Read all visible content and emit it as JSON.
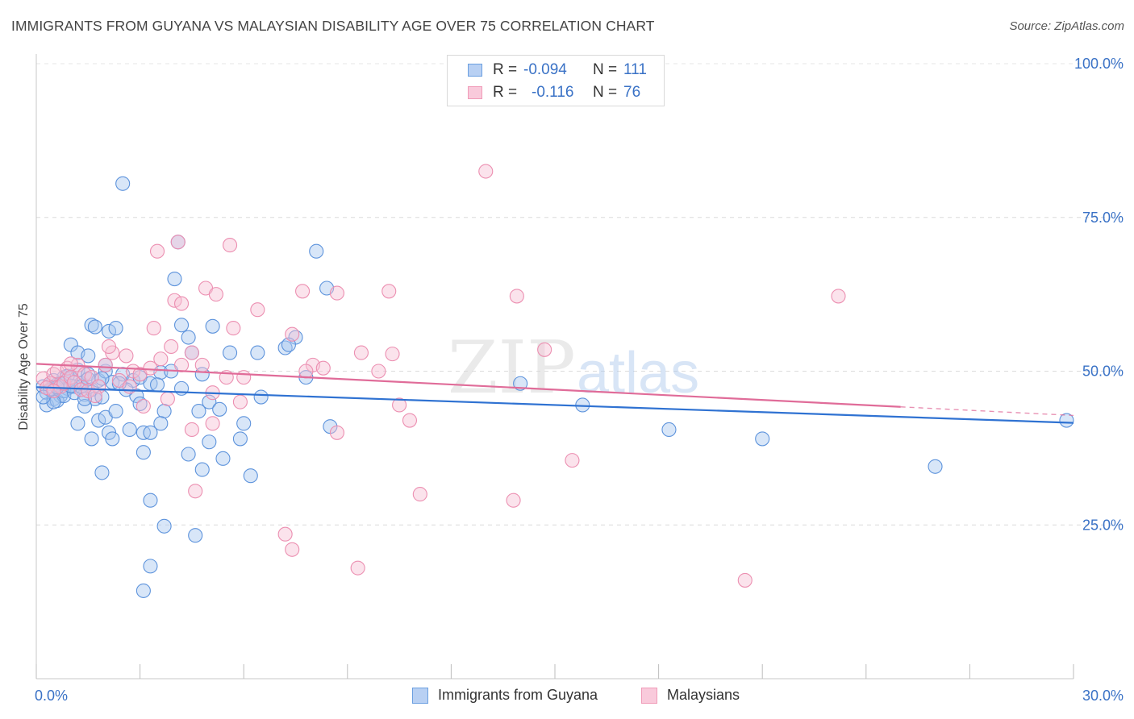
{
  "title": "IMMIGRANTS FROM GUYANA VS MALAYSIAN DISABILITY AGE OVER 75 CORRELATION CHART",
  "source": "Source: ZipAtlas.com",
  "watermark": {
    "zip": "ZIP",
    "atlas": "atlas"
  },
  "legend": {
    "series1": {
      "r_label": "R =",
      "r_value": "-0.094",
      "n_label": "N =",
      "n_value": "111"
    },
    "series2": {
      "r_label": "R =",
      "r_value": "-0.116",
      "n_label": "N =",
      "n_value": "76"
    }
  },
  "bottom_legend": {
    "series1": "Immigrants from Guyana",
    "series2": "Malaysians"
  },
  "chart_data": {
    "type": "scatter",
    "title": "IMMIGRANTS FROM GUYANA VS MALAYSIAN DISABILITY AGE OVER 75 CORRELATION CHART",
    "xlabel": "",
    "ylabel": "Disability Age Over 75",
    "xlim": [
      0,
      30
    ],
    "ylim": [
      0,
      105
    ],
    "x_tick_labels": [
      "0.0%",
      "30.0%"
    ],
    "y_ticks": [
      25,
      50,
      75,
      100
    ],
    "y_tick_labels": [
      "25.0%",
      "50.0%",
      "75.0%",
      "100.0%"
    ],
    "grid": true,
    "colors": {
      "series1": "#6b9fe0",
      "series2": "#f09bb8",
      "trend1": "#2f72d2",
      "trend2": "#e06c99",
      "tick_text": "#3a72c6"
    },
    "series": [
      {
        "name": "Immigrants from Guyana",
        "trend": {
          "x": [
            0,
            30
          ],
          "y": [
            47.4,
            41.6
          ]
        },
        "points": [
          [
            0.2,
            47.5
          ],
          [
            0.3,
            46.5
          ],
          [
            0.4,
            47.0
          ],
          [
            0.5,
            48.5
          ],
          [
            0.5,
            45.5
          ],
          [
            0.6,
            47.8
          ],
          [
            0.7,
            46.0
          ],
          [
            0.8,
            49.0
          ],
          [
            0.9,
            47.2
          ],
          [
            1.0,
            48.8
          ],
          [
            1.1,
            47.5
          ],
          [
            1.2,
            50.2
          ],
          [
            1.3,
            48.0
          ],
          [
            1.4,
            46.2
          ],
          [
            1.5,
            49.5
          ],
          [
            1.6,
            47.0
          ],
          [
            1.7,
            45.5
          ],
          [
            1.8,
            48.5
          ],
          [
            2.0,
            50.0
          ],
          [
            0.3,
            44.5
          ],
          [
            0.6,
            45.2
          ],
          [
            0.8,
            46.8
          ],
          [
            1.0,
            54.3
          ],
          [
            1.2,
            53.0
          ],
          [
            1.5,
            52.5
          ],
          [
            1.6,
            57.5
          ],
          [
            1.7,
            57.2
          ],
          [
            2.1,
            56.5
          ],
          [
            2.3,
            57.0
          ],
          [
            2.0,
            51.0
          ],
          [
            2.2,
            48.2
          ],
          [
            2.5,
            49.5
          ],
          [
            2.8,
            48.5
          ],
          [
            3.0,
            49.0
          ],
          [
            3.3,
            48.0
          ],
          [
            3.6,
            49.8
          ],
          [
            3.9,
            50.0
          ],
          [
            4.2,
            57.5
          ],
          [
            4.4,
            55.5
          ],
          [
            4.5,
            53.0
          ],
          [
            4.8,
            49.5
          ],
          [
            5.1,
            57.3
          ],
          [
            5.6,
            53.0
          ],
          [
            6.4,
            53.0
          ],
          [
            7.2,
            53.8
          ],
          [
            7.5,
            55.5
          ],
          [
            7.3,
            54.3
          ],
          [
            7.8,
            49.0
          ],
          [
            6.5,
            45.8
          ],
          [
            5.0,
            45.0
          ],
          [
            5.3,
            43.8
          ],
          [
            4.7,
            43.5
          ],
          [
            3.7,
            43.5
          ],
          [
            2.9,
            46.0
          ],
          [
            1.9,
            45.8
          ],
          [
            1.4,
            44.3
          ],
          [
            1.8,
            42.0
          ],
          [
            1.2,
            41.5
          ],
          [
            2.0,
            42.5
          ],
          [
            3.1,
            40.0
          ],
          [
            3.3,
            40.0
          ],
          [
            3.6,
            41.5
          ],
          [
            2.7,
            40.5
          ],
          [
            2.1,
            40.0
          ],
          [
            2.2,
            39.0
          ],
          [
            1.6,
            39.0
          ],
          [
            4.4,
            36.5
          ],
          [
            4.8,
            34.0
          ],
          [
            5.4,
            35.8
          ],
          [
            6.2,
            33.0
          ],
          [
            6.0,
            41.5
          ],
          [
            5.9,
            39.0
          ],
          [
            8.5,
            41.0
          ],
          [
            5.0,
            38.5
          ],
          [
            3.1,
            36.8
          ],
          [
            1.9,
            33.5
          ],
          [
            3.3,
            29.0
          ],
          [
            3.7,
            24.8
          ],
          [
            4.6,
            23.3
          ],
          [
            3.3,
            18.3
          ],
          [
            3.1,
            14.3
          ],
          [
            2.5,
            80.5
          ],
          [
            4.1,
            71.0
          ],
          [
            8.1,
            69.5
          ],
          [
            4.0,
            65.0
          ],
          [
            8.4,
            63.5
          ],
          [
            0.8,
            46.0
          ],
          [
            0.5,
            45.0
          ],
          [
            1.1,
            46.5
          ],
          [
            2.6,
            47.0
          ],
          [
            14.0,
            48.0
          ],
          [
            15.8,
            44.5
          ],
          [
            18.3,
            40.5
          ],
          [
            21.0,
            39.0
          ],
          [
            26.0,
            34.5
          ],
          [
            29.8,
            42.0
          ],
          [
            0.4,
            47.0
          ],
          [
            1.3,
            47.5
          ],
          [
            0.9,
            49.2
          ],
          [
            1.5,
            48.7
          ],
          [
            2.4,
            48.0
          ],
          [
            3.5,
            47.8
          ],
          [
            4.2,
            47.2
          ],
          [
            0.7,
            48.0
          ],
          [
            1.0,
            47.6
          ],
          [
            1.9,
            48.8
          ],
          [
            0.2,
            45.8
          ],
          [
            2.3,
            43.5
          ],
          [
            3.0,
            44.7
          ],
          [
            1.4,
            45.5
          ],
          [
            0.6,
            47.4
          ]
        ]
      },
      {
        "name": "Malaysians",
        "trend": {
          "x": [
            0,
            25
          ],
          "y": [
            51.2,
            44.2
          ]
        },
        "points": [
          [
            0.2,
            48.8
          ],
          [
            0.4,
            48.0
          ],
          [
            0.5,
            49.5
          ],
          [
            0.6,
            50.0
          ],
          [
            0.7,
            47.5
          ],
          [
            0.8,
            48.0
          ],
          [
            0.9,
            50.5
          ],
          [
            1.0,
            49.0
          ],
          [
            1.1,
            48.2
          ],
          [
            1.2,
            51.0
          ],
          [
            1.3,
            47.0
          ],
          [
            1.4,
            49.5
          ],
          [
            1.5,
            46.8
          ],
          [
            1.6,
            49.0
          ],
          [
            1.8,
            47.5
          ],
          [
            2.0,
            51.0
          ],
          [
            2.2,
            53.0
          ],
          [
            2.4,
            48.5
          ],
          [
            2.6,
            52.5
          ],
          [
            2.8,
            50.0
          ],
          [
            3.0,
            49.5
          ],
          [
            3.3,
            50.5
          ],
          [
            3.6,
            52.0
          ],
          [
            3.9,
            54.0
          ],
          [
            4.2,
            51.0
          ],
          [
            4.5,
            53.0
          ],
          [
            4.8,
            51.0
          ],
          [
            5.1,
            46.5
          ],
          [
            5.5,
            49.0
          ],
          [
            3.4,
            57.0
          ],
          [
            4.0,
            61.5
          ],
          [
            4.2,
            61.0
          ],
          [
            4.1,
            71.0
          ],
          [
            3.5,
            69.5
          ],
          [
            5.6,
            70.5
          ],
          [
            4.9,
            63.5
          ],
          [
            5.2,
            62.5
          ],
          [
            6.4,
            60.0
          ],
          [
            7.7,
            63.0
          ],
          [
            8.7,
            62.7
          ],
          [
            10.2,
            63.0
          ],
          [
            13.9,
            62.2
          ],
          [
            23.2,
            62.2
          ],
          [
            5.7,
            57.0
          ],
          [
            7.4,
            56.0
          ],
          [
            9.4,
            53.0
          ],
          [
            10.3,
            52.8
          ],
          [
            14.7,
            53.5
          ],
          [
            8.0,
            51.0
          ],
          [
            8.3,
            50.5
          ],
          [
            7.8,
            50.0
          ],
          [
            9.9,
            50.0
          ],
          [
            10.5,
            44.5
          ],
          [
            10.8,
            42.0
          ],
          [
            3.1,
            44.3
          ],
          [
            4.5,
            40.5
          ],
          [
            5.1,
            41.5
          ],
          [
            5.9,
            45.0
          ],
          [
            8.7,
            40.0
          ],
          [
            11.1,
            30.0
          ],
          [
            13.8,
            29.0
          ],
          [
            15.5,
            35.5
          ],
          [
            4.6,
            30.5
          ],
          [
            7.2,
            23.5
          ],
          [
            7.4,
            21.0
          ],
          [
            9.3,
            18.0
          ],
          [
            20.5,
            16.0
          ],
          [
            13.0,
            82.5
          ],
          [
            0.3,
            47.3
          ],
          [
            1.7,
            46.0
          ],
          [
            2.7,
            47.5
          ],
          [
            1.0,
            51.2
          ],
          [
            2.1,
            54.0
          ],
          [
            0.5,
            46.8
          ],
          [
            3.8,
            45.5
          ],
          [
            6.0,
            49.0
          ]
        ]
      }
    ]
  }
}
